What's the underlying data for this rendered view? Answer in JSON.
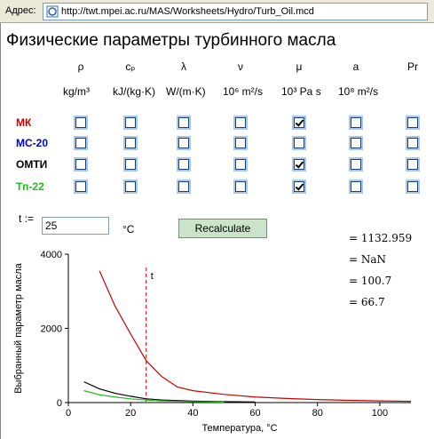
{
  "browser": {
    "address_label": "Адрес:",
    "url": "http://twt.mpei.ac.ru/MAS/Worksheets/Hydro/Turb_Oil.mcd"
  },
  "title": "Физические параметры турбинного масла",
  "columns": [
    {
      "symbol": "ρ",
      "unit": "kg/m³"
    },
    {
      "symbol": "cₚ",
      "unit": "kJ/(kg·K)"
    },
    {
      "symbol": "λ",
      "unit": "W/(m·K)"
    },
    {
      "symbol": "ν",
      "unit": "10⁶ m²/s"
    },
    {
      "symbol": "μ",
      "unit": "10³ Pa s"
    },
    {
      "symbol": "a",
      "unit": "10⁸ m²/s"
    },
    {
      "symbol": "Pr",
      "unit": ""
    }
  ],
  "rows": [
    {
      "label": "МК",
      "color": "#cc0000",
      "checked": [
        false,
        false,
        false,
        false,
        true,
        false,
        false
      ]
    },
    {
      "label": "МС-20",
      "color": "#0000cc",
      "checked": [
        false,
        false,
        false,
        false,
        false,
        false,
        false
      ]
    },
    {
      "label": "ОМТИ",
      "color": "#000000",
      "checked": [
        false,
        false,
        false,
        false,
        true,
        false,
        false
      ]
    },
    {
      "label": "Тп-22",
      "color": "#22bb22",
      "checked": [
        false,
        false,
        false,
        false,
        true,
        false,
        false
      ]
    }
  ],
  "temperature": {
    "label": "t :=",
    "value": "25",
    "unit": "°C"
  },
  "recalculate_label": "Recalculate",
  "results": [
    "= 1132.959",
    "= NaN",
    "= 100.7",
    "= 66.7"
  ],
  "chart_data": {
    "type": "line",
    "xlabel": "Температура, °C",
    "ylabel": "Выбранный параметр масла",
    "xlim": [
      0,
      110
    ],
    "ylim": [
      0,
      4000
    ],
    "xticks": [
      0,
      20,
      40,
      60,
      80,
      100
    ],
    "yticks": [
      0,
      2000,
      4000
    ],
    "marker": {
      "x": 25,
      "label": "t"
    },
    "series": [
      {
        "color": "#cc0000",
        "x": [
          10,
          15,
          20,
          25,
          30,
          35,
          40,
          50,
          60,
          70,
          80,
          90,
          100,
          110
        ],
        "y": [
          3550,
          2600,
          1850,
          1130,
          700,
          420,
          320,
          220,
          150,
          110,
          80,
          60,
          45,
          35
        ]
      },
      {
        "color": "#000000",
        "x": [
          5,
          10,
          15,
          20,
          25,
          30,
          40,
          50,
          60
        ],
        "y": [
          560,
          370,
          250,
          170,
          100,
          70,
          40,
          25,
          15
        ]
      },
      {
        "color": "#22bb22",
        "x": [
          5,
          10,
          15,
          20,
          25,
          30,
          40,
          50
        ],
        "y": [
          320,
          210,
          150,
          100,
          67,
          45,
          25,
          12
        ]
      }
    ]
  }
}
